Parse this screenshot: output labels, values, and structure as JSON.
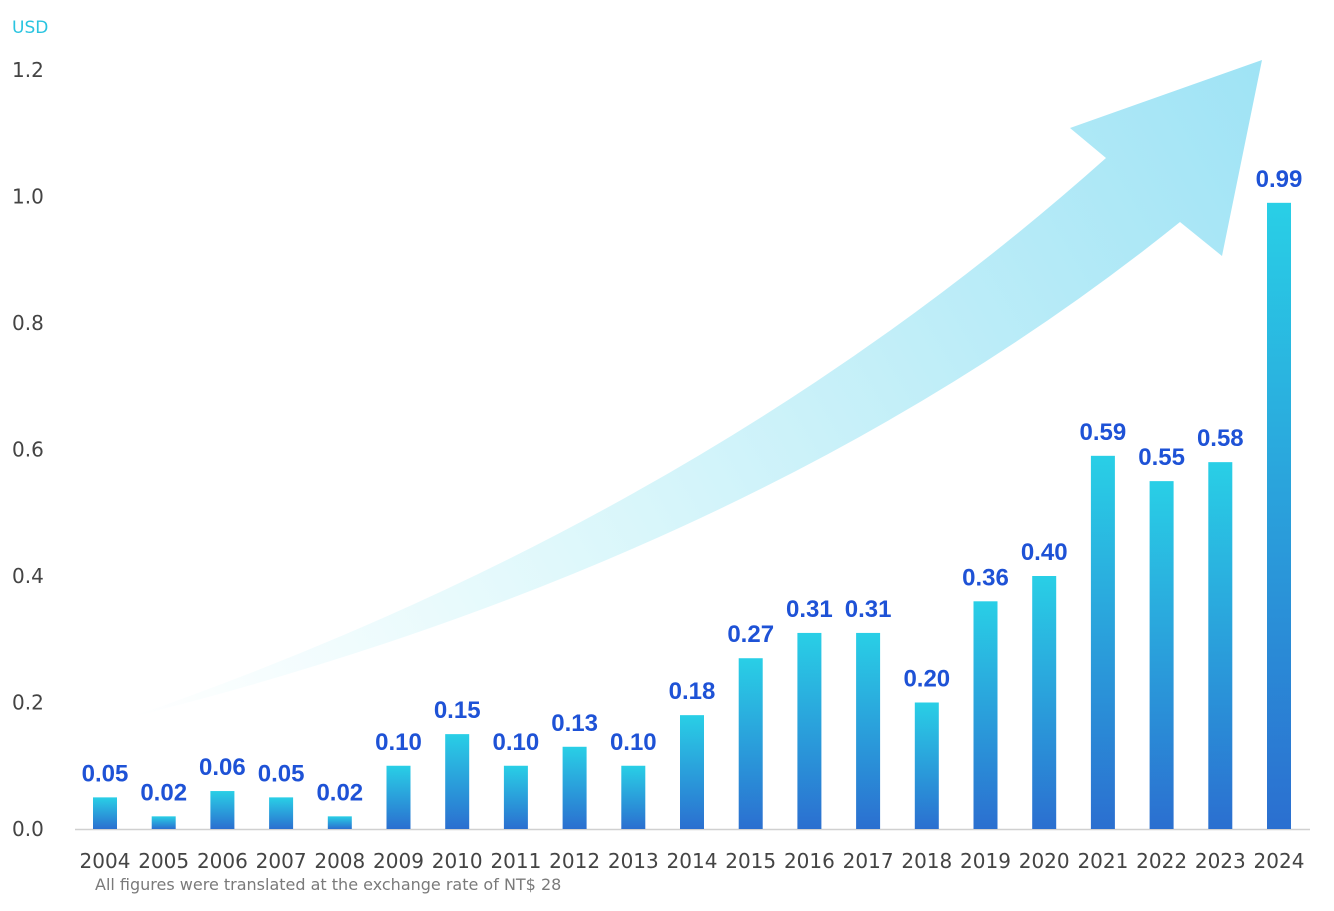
{
  "chart_data": {
    "type": "bar",
    "unit_label": "USD",
    "categories": [
      "2004",
      "2005",
      "2006",
      "2007",
      "2008",
      "2009",
      "2010",
      "2011",
      "2012",
      "2013",
      "2014",
      "2015",
      "2016",
      "2017",
      "2018",
      "2019",
      "2020",
      "2021",
      "2022",
      "2023",
      "2024"
    ],
    "values": [
      0.05,
      0.02,
      0.06,
      0.05,
      0.02,
      0.1,
      0.15,
      0.1,
      0.13,
      0.1,
      0.18,
      0.27,
      0.31,
      0.31,
      0.2,
      0.36,
      0.4,
      0.59,
      0.55,
      0.58,
      0.99
    ],
    "data_labels": [
      "0.05",
      "0.02",
      "0.06",
      "0.05",
      "0.02",
      "0.10",
      "0.15",
      "0.10",
      "0.13",
      "0.10",
      "0.18",
      "0.27",
      "0.31",
      "0.31",
      "0.20",
      "0.36",
      "0.40",
      "0.59",
      "0.55",
      "0.58",
      "0.99"
    ],
    "y_ticks": [
      "0.0",
      "0.2",
      "0.4",
      "0.6",
      "0.8",
      "1.0",
      "1.2"
    ],
    "ylim": [
      0,
      1.2
    ],
    "grid": false,
    "footnote": "All  figures were translated at the exchange rate of NT$ 28",
    "colors": {
      "bar_top": "#29cfe6",
      "bar_bottom": "#2b6fd0",
      "label": "#1e52d6",
      "unit": "#29c4e0",
      "arrow_light": "#e6fbfc",
      "arrow_dark": "#9fe3f5"
    }
  }
}
